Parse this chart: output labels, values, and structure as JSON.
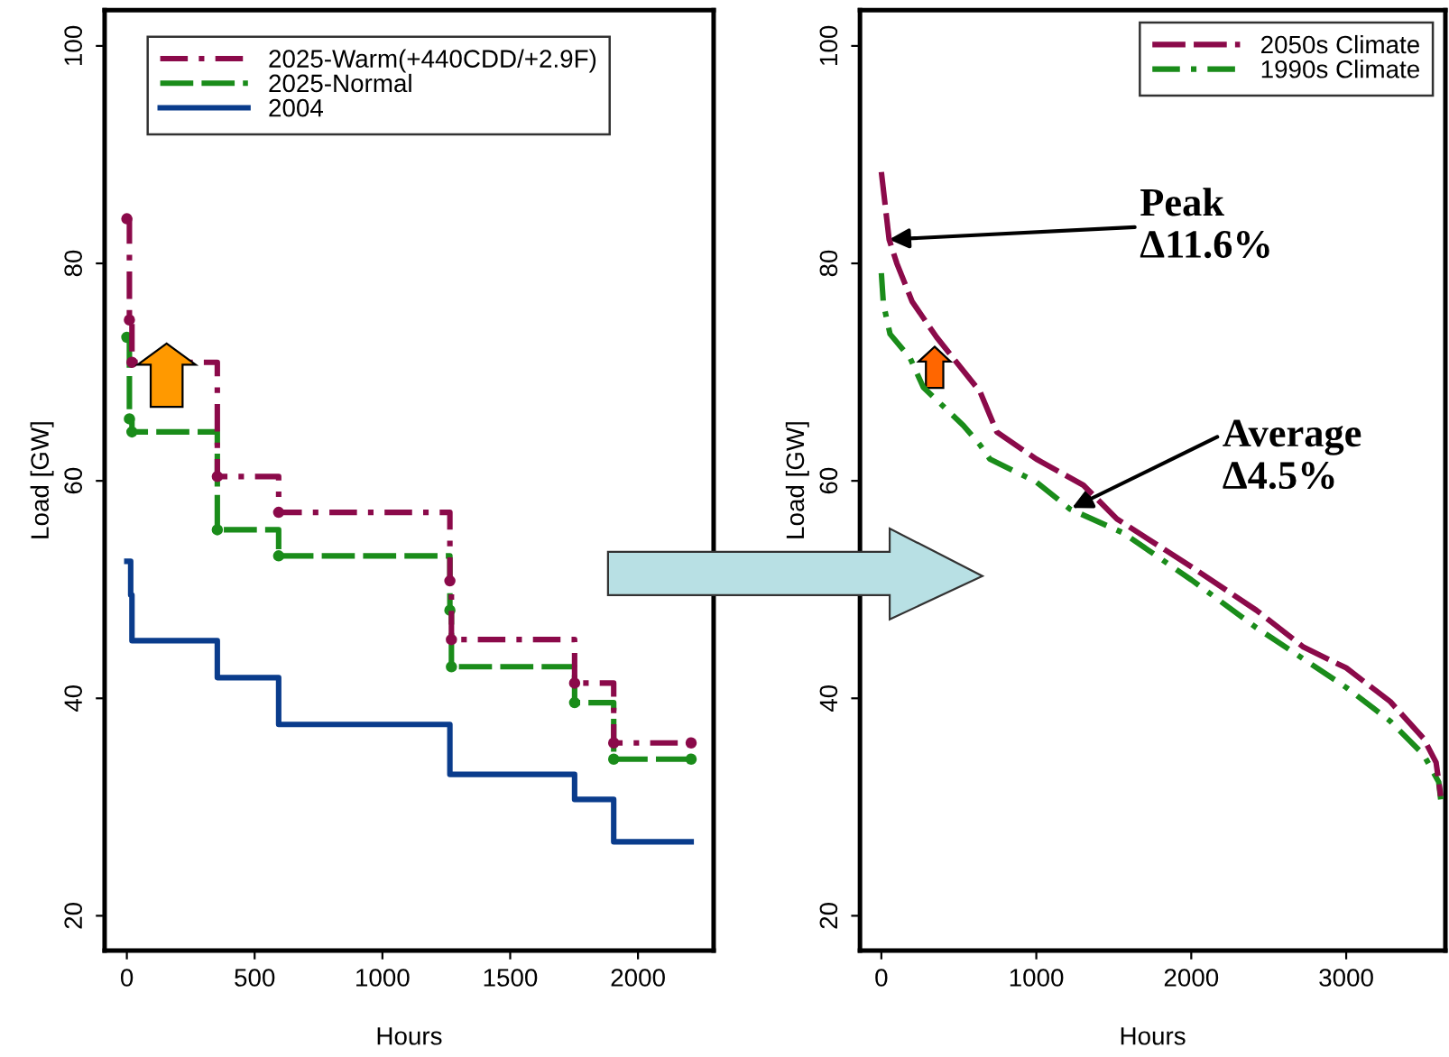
{
  "chart_data": [
    {
      "type": "step",
      "xlabel": "Hours",
      "ylabel": "Load [GW]",
      "xlim": [
        -87,
        2296
      ],
      "ylim": [
        16.8,
        103.3
      ],
      "xticks": [
        0,
        500,
        1000,
        1500,
        2000
      ],
      "yticks": [
        20,
        40,
        60,
        80,
        100
      ],
      "grid": false,
      "legend": "top",
      "series": [
        {
          "name": "2025-Warm(+440CDD/+2.9F)",
          "color": "#8b0a4a",
          "line_style": "dashdot",
          "marker": "circle",
          "x": [
            0,
            10,
            20,
            354,
            594,
            1264,
            1270,
            1752,
            1905,
            2208
          ],
          "values": [
            84.1,
            74.8,
            70.9,
            60.4,
            57.1,
            50.8,
            45.4,
            41.4,
            35.9,
            35.9
          ]
        },
        {
          "name": "2025-Normal",
          "color": "#1a8c1a",
          "line_style": "dashed",
          "marker": "circle",
          "x": [
            0,
            10,
            20,
            354,
            594,
            1264,
            1270,
            1752,
            1905,
            2208
          ],
          "values": [
            73.2,
            65.7,
            64.5,
            55.5,
            53.1,
            48.1,
            42.9,
            39.6,
            34.4,
            34.4
          ]
        },
        {
          "name": "2004",
          "color": "#0a3c8c",
          "line_style": "solid",
          "marker": "none",
          "x": [
            0,
            15,
            20,
            354,
            594,
            1264,
            1752,
            1905,
            2208
          ],
          "values": [
            52.6,
            49.5,
            45.3,
            41.9,
            37.6,
            33.0,
            30.7,
            26.8,
            26.8
          ]
        }
      ]
    },
    {
      "type": "line",
      "xlabel": "Hours",
      "ylabel": "Load [GW]",
      "xlim": [
        -138,
        3640
      ],
      "ylim": [
        16.8,
        103.3
      ],
      "xticks": [
        0,
        1000,
        2000,
        3000
      ],
      "yticks": [
        20,
        40,
        60,
        80,
        100
      ],
      "grid": false,
      "legend": "top right",
      "annotations": [
        {
          "text": "Peak\nΔ11.6%",
          "x": 50,
          "y": 82.2
        },
        {
          "text": "Average\nΔ4.5%",
          "x": 1230,
          "y": 57.5
        }
      ],
      "series": [
        {
          "name": "2050s Climate",
          "color": "#8b0a4a",
          "line_style": "dashed",
          "x": [
            0,
            50,
            100,
            198,
            357,
            637,
            745,
            1000,
            1304,
            1520,
            2000,
            2420,
            2725,
            3000,
            3284,
            3500,
            3580,
            3610
          ],
          "values": [
            88.4,
            82.2,
            80.0,
            76.5,
            73.2,
            68.2,
            64.5,
            62.0,
            59.6,
            56.5,
            52.1,
            48.1,
            44.7,
            42.8,
            39.7,
            36.3,
            34.1,
            31.0
          ]
        },
        {
          "name": "1990s Climate",
          "color": "#1a8c1a",
          "line_style": "dashdot",
          "x": [
            0,
            13,
            56,
            185,
            271,
            529,
            637,
            700,
            1000,
            1218,
            1562,
            2000,
            2420,
            3000,
            3284,
            3500,
            3597,
            3610
          ],
          "values": [
            79.1,
            76.3,
            73.5,
            71.3,
            68.6,
            65.1,
            63.3,
            62.0,
            59.9,
            57.4,
            55.2,
            50.9,
            46.5,
            41.0,
            37.9,
            34.8,
            32.3,
            30.7
          ]
        }
      ]
    }
  ]
}
